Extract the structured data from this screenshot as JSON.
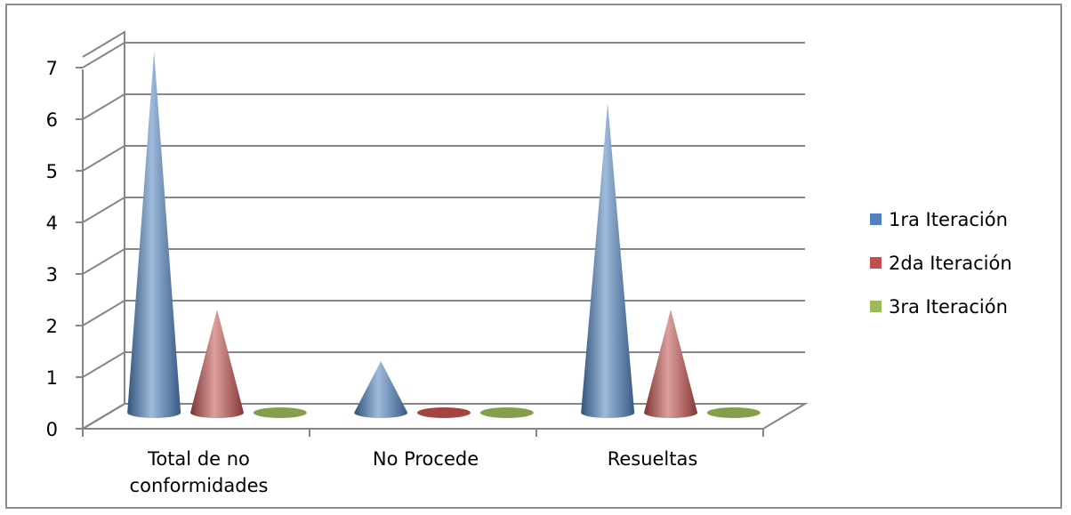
{
  "chart_data": {
    "type": "bar",
    "shape": "cone",
    "categories": [
      "Total de no conformidades",
      "No Procede",
      "Resueltas"
    ],
    "category_label_lines": [
      [
        "Total de no",
        "conformidades"
      ],
      [
        "No Procede"
      ],
      [
        "Resueltas"
      ]
    ],
    "series": [
      {
        "name": "1ra Iteración",
        "values": [
          7,
          1,
          6
        ],
        "color": "#4f81bd"
      },
      {
        "name": "2da Iteración",
        "values": [
          2,
          0,
          2
        ],
        "color": "#c0504d"
      },
      {
        "name": "3ra Iteración",
        "values": [
          0,
          0,
          0
        ],
        "color": "#9bbb59"
      }
    ],
    "ylim": [
      0,
      7
    ],
    "yticks": [
      0,
      1,
      2,
      3,
      4,
      5,
      6,
      7
    ],
    "grid": true,
    "legend": "right"
  }
}
